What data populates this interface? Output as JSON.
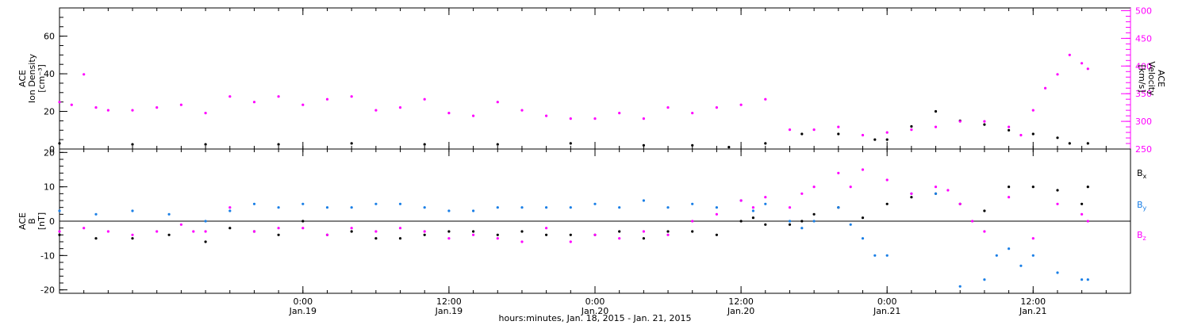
{
  "chart_data": [
    {
      "type": "scatter",
      "panel": "top",
      "ylabel": [
        "ACE",
        "Ion Density",
        "[cm⁻³]"
      ],
      "ylim": [
        0,
        75
      ],
      "yticks": [
        "0",
        "20",
        "40",
        "60"
      ],
      "ytick_values": [
        0,
        20,
        40,
        60
      ],
      "y2label": [
        "ACE",
        "Velocity",
        "[km/s]"
      ],
      "y2lim": [
        250,
        505
      ],
      "y2ticks": [
        "250",
        "300",
        "350",
        "400",
        "450",
        "500"
      ],
      "y2tick_values": [
        250,
        300,
        350,
        400,
        450,
        500
      ],
      "xlim": [
        -20,
        68
      ],
      "series": [
        {
          "color": "#000000",
          "axis": "left",
          "x": [
            -20,
            -14,
            -8,
            -2,
            4,
            10,
            16,
            22,
            28,
            32,
            35,
            38,
            41,
            44,
            47,
            48,
            50,
            52,
            54,
            56,
            58,
            60,
            62,
            63,
            64.5
          ],
          "y": [
            3,
            2.5,
            2.5,
            2.5,
            3,
            2.5,
            2.5,
            3,
            2,
            2,
            1,
            3,
            8,
            8,
            5,
            5,
            12,
            20,
            15,
            13,
            10,
            8,
            6,
            3,
            3
          ]
        },
        {
          "color": "#ff00ff",
          "axis": "right",
          "x": [
            -20,
            -19,
            -18,
            -17,
            -16,
            -14,
            -12,
            -10,
            -8,
            -6,
            -4,
            -2,
            0,
            2,
            4,
            6,
            8,
            10,
            12,
            14,
            16,
            18,
            20,
            22,
            24,
            26,
            28,
            30,
            32,
            34,
            36,
            38,
            40,
            42,
            44,
            46,
            48,
            50,
            52,
            54,
            56,
            58,
            59,
            60,
            61,
            62,
            63,
            64,
            64.5
          ],
          "y": [
            335,
            330,
            385,
            325,
            320,
            320,
            325,
            330,
            315,
            345,
            335,
            345,
            330,
            340,
            345,
            320,
            325,
            340,
            315,
            310,
            335,
            320,
            310,
            305,
            305,
            315,
            305,
            325,
            315,
            325,
            330,
            340,
            285,
            285,
            290,
            275,
            280,
            285,
            290,
            300,
            300,
            290,
            275,
            320,
            360,
            385,
            420,
            405,
            395
          ]
        }
      ]
    },
    {
      "type": "scatter",
      "panel": "bottom",
      "ylabel": [
        "ACE",
        "B",
        "[nT]"
      ],
      "ylim": [
        -21,
        21
      ],
      "yticks": [
        "-20",
        "-10",
        "0",
        "10",
        "20"
      ],
      "ytick_values": [
        -20,
        -10,
        0,
        10,
        20
      ],
      "xlim": [
        -20,
        68
      ],
      "series": [
        {
          "name": "Bx",
          "color": "#000000",
          "x": [
            -20,
            -17,
            -14,
            -11,
            -8,
            -6,
            -4,
            -2,
            0,
            2,
            4,
            6,
            8,
            10,
            12,
            14,
            16,
            18,
            20,
            22,
            24,
            26,
            28,
            30,
            32,
            34,
            36,
            37,
            38,
            40,
            41,
            42,
            44,
            46,
            48,
            50,
            52,
            54,
            56,
            58,
            60,
            62,
            64,
            64.5
          ],
          "y": [
            -4,
            -5,
            -5,
            -4,
            -6,
            -2,
            -3,
            -4,
            0,
            -4,
            -3,
            -5,
            -5,
            -4,
            -3,
            -3,
            -4,
            -3,
            -4,
            -4,
            -4,
            -3,
            -5,
            -3,
            -3,
            -4,
            0,
            1,
            -1,
            -1,
            0,
            2,
            4,
            1,
            5,
            7,
            8,
            5,
            3,
            10,
            10,
            9,
            5,
            10
          ]
        },
        {
          "name": "By",
          "color": "#1a7fe6",
          "x": [
            -20,
            -17,
            -14,
            -11,
            -8,
            -6,
            -4,
            -2,
            0,
            2,
            4,
            6,
            8,
            10,
            12,
            14,
            16,
            18,
            20,
            22,
            24,
            26,
            28,
            30,
            32,
            34,
            36,
            37,
            38,
            40,
            41,
            42,
            44,
            45,
            46,
            47,
            48,
            50,
            52,
            54,
            56,
            57,
            58,
            59,
            60,
            62,
            64,
            64.5
          ],
          "y": [
            3,
            2,
            3,
            2,
            0,
            3,
            5,
            4,
            5,
            4,
            4,
            5,
            5,
            4,
            3,
            3,
            4,
            4,
            4,
            4,
            5,
            4,
            6,
            4,
            5,
            4,
            6,
            3,
            5,
            0,
            -2,
            0,
            4,
            -1,
            -5,
            -10,
            -10,
            8,
            8,
            -19,
            -17,
            -10,
            -8,
            -13,
            -10,
            -15,
            -17,
            -17
          ]
        },
        {
          "name": "Bz",
          "color": "#ff00ff",
          "x": [
            -20,
            -18,
            -16,
            -14,
            -12,
            -10,
            -9,
            -8,
            -6,
            -4,
            -2,
            0,
            2,
            4,
            6,
            8,
            10,
            12,
            14,
            16,
            18,
            20,
            22,
            24,
            26,
            28,
            30,
            32,
            34,
            36,
            37,
            38,
            40,
            41,
            42,
            44,
            45,
            46,
            48,
            50,
            52,
            53,
            54,
            55,
            56,
            58,
            60,
            62,
            64,
            64.5
          ],
          "y": [
            -3,
            -2,
            -3,
            -4,
            -3,
            -1,
            -3,
            -3,
            4,
            -3,
            -2,
            -2,
            -4,
            -2,
            -3,
            -2,
            -3,
            -5,
            -4,
            -5,
            -6,
            -2,
            -6,
            -4,
            -5,
            -3,
            -4,
            0,
            2,
            6,
            4,
            7,
            4,
            8,
            10,
            14,
            10,
            15,
            12,
            8,
            10,
            9,
            5,
            0,
            -3,
            7,
            -5,
            5,
            2,
            0
          ]
        }
      ],
      "legend": [
        {
          "label": "B",
          "sub": "x",
          "color": "#000000"
        },
        {
          "label": "B",
          "sub": "y",
          "color": "#1a7fe6"
        },
        {
          "label": "B",
          "sub": "z",
          "color": "#ff00ff"
        }
      ]
    }
  ],
  "xaxis": {
    "ticks": [
      {
        "time": "0:00",
        "date": "Jan.19",
        "x": 0
      },
      {
        "time": "12:00",
        "date": "Jan.19",
        "x": 12
      },
      {
        "time": "0:00",
        "date": "Jan.20",
        "x": 24
      },
      {
        "time": "12:00",
        "date": "Jan.20",
        "x": 36
      },
      {
        "time": "0:00",
        "date": "Jan.21",
        "x": 48
      },
      {
        "time": "12:00",
        "date": "Jan.21",
        "x": 60
      }
    ],
    "title": "hours:minutes, Jan. 18, 2015 - Jan. 21, 2015"
  }
}
